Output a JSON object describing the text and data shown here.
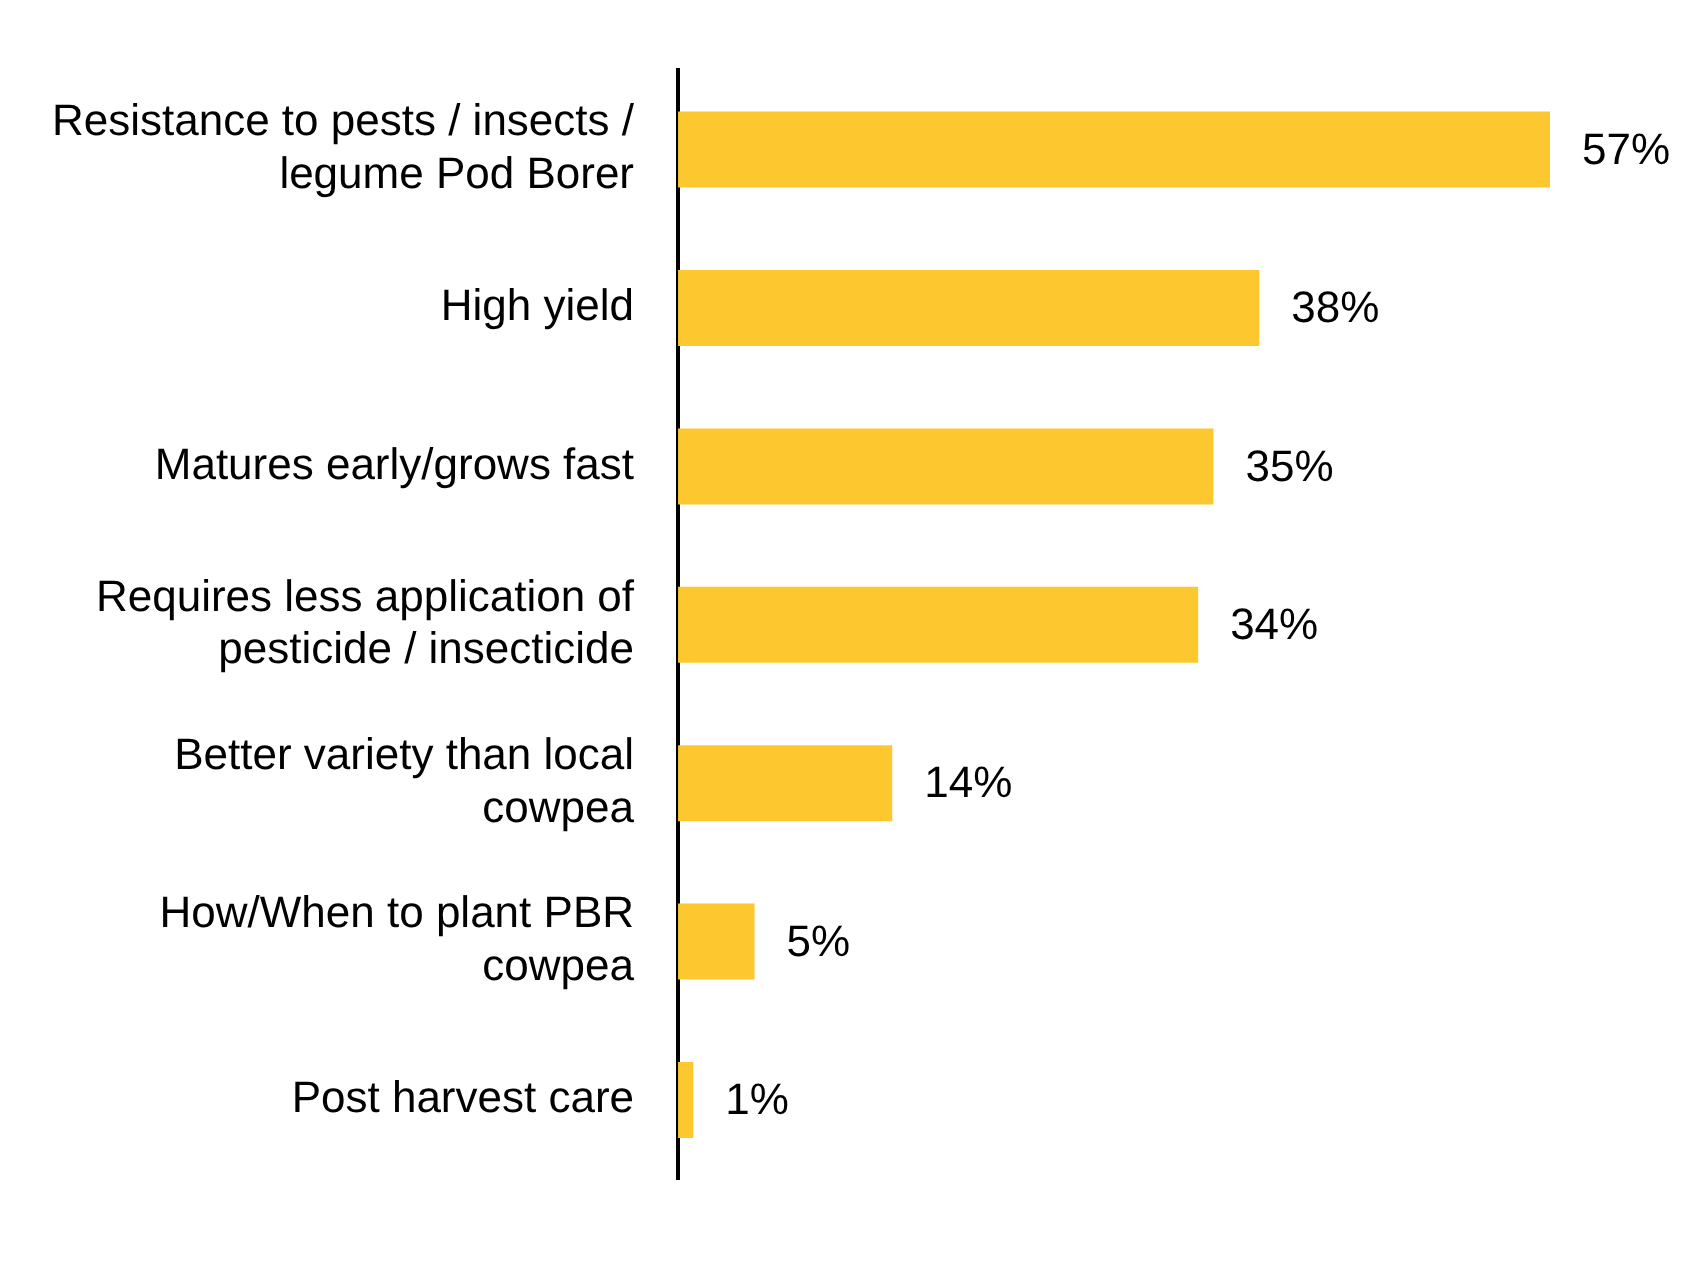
{
  "chart_data": {
    "type": "bar",
    "orientation": "horizontal",
    "categories": [
      "Resistance to pests / insects / legume Pod Borer",
      "High yield",
      "Matures early/grows fast",
      "Requires less application of pesticide / insecticide",
      "Better variety than local cowpea",
      "How/When to plant PBR cowpea",
      "Post harvest care"
    ],
    "values": [
      57,
      38,
      35,
      34,
      14,
      5,
      1
    ],
    "value_labels": [
      "57%",
      "38%",
      "35%",
      "34%",
      "14%",
      "5%",
      "1%"
    ],
    "color": "#fdc82f",
    "grid": false,
    "legend": false
  }
}
